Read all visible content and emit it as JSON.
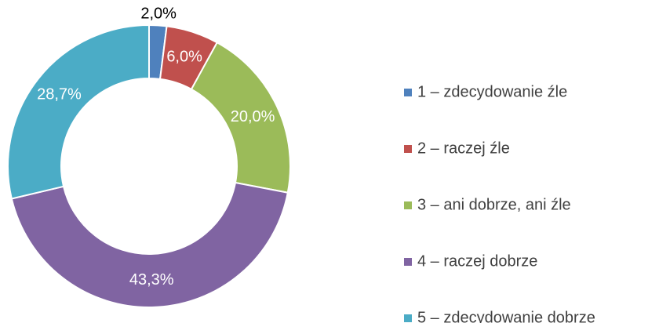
{
  "chart_data": {
    "type": "donut",
    "categories": [
      "1 – zdecydowanie źle",
      "2 – raczej źle",
      "3 – ani dobrze, ani źle",
      "4 – raczej dobrze",
      "5 – zdecydowanie dobrze"
    ],
    "values": [
      2.0,
      6.0,
      20.0,
      43.3,
      28.7
    ],
    "value_labels": [
      "2,0%",
      "6,0%",
      "20,0%",
      "43,3%",
      "28,7%"
    ],
    "colors": [
      "#4f81bd",
      "#c0504d",
      "#9bbb59",
      "#8064a2",
      "#4bacc6"
    ],
    "legend": "right"
  }
}
